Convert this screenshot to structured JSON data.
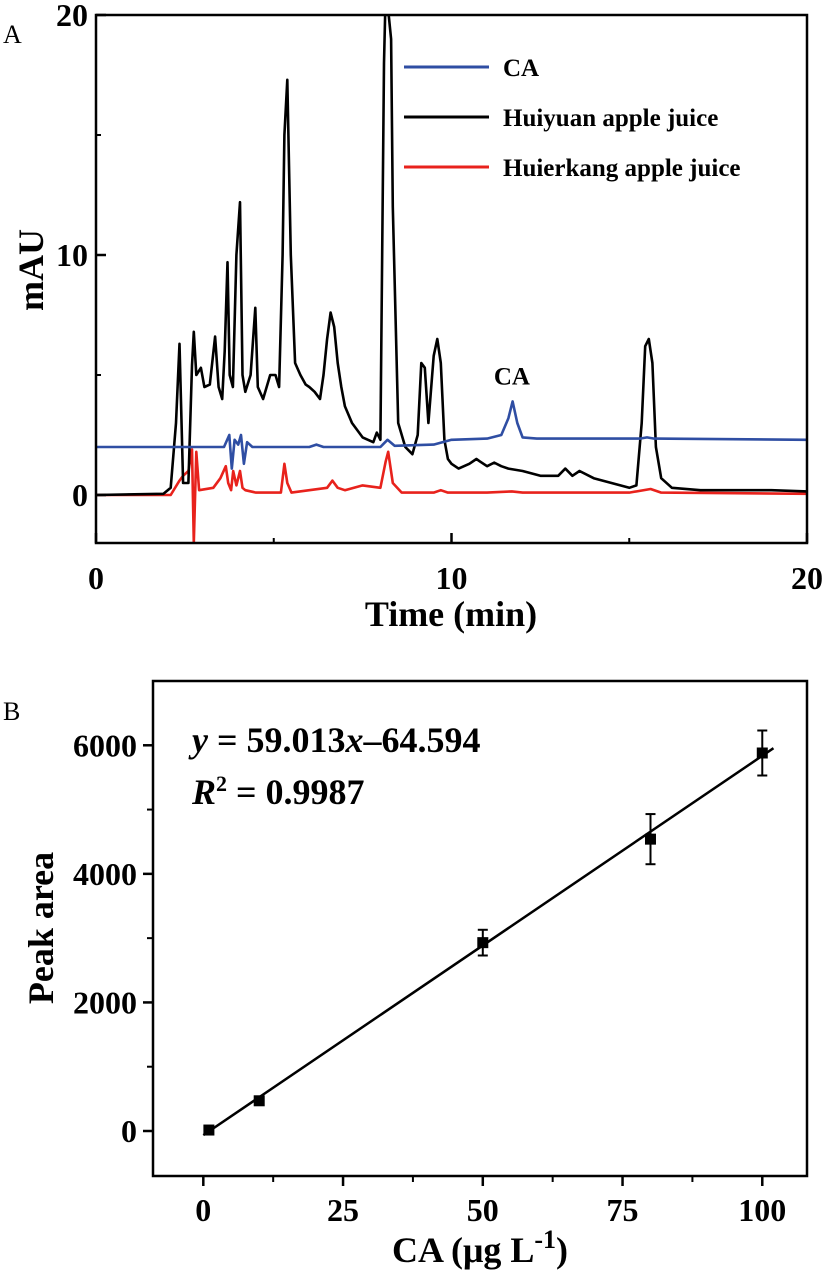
{
  "chart_data": [
    {
      "type": "line",
      "panel_label": "A",
      "xlabel": "Time (min)",
      "ylabel": "mAU",
      "xlim": [
        0,
        20
      ],
      "ylim": [
        -2,
        20
      ],
      "xticks": [
        0,
        10,
        20
      ],
      "yticks": [
        0,
        10,
        20
      ],
      "xticklabels": [
        "0",
        "10",
        "20"
      ],
      "yticklabels": [
        "0",
        "10",
        "20"
      ],
      "grid": false,
      "legend_position": "top-right",
      "annotation": "CA",
      "annotation_at": [
        11.7,
        4.6
      ],
      "series": [
        {
          "name": "CA",
          "color": "#2f4ea3",
          "x": [
            0,
            3.6,
            3.75,
            3.82,
            3.9,
            4.0,
            4.08,
            4.16,
            4.25,
            4.4,
            6.0,
            6.2,
            6.4,
            8.0,
            8.2,
            8.4,
            9.5,
            10.0,
            11.0,
            11.4,
            11.6,
            11.72,
            11.85,
            12.0,
            12.4,
            15.3,
            15.5,
            15.7,
            20
          ],
          "y": [
            2.0,
            2.0,
            2.5,
            1.1,
            2.3,
            2.1,
            2.5,
            1.3,
            2.2,
            2.0,
            2.0,
            2.1,
            2.0,
            2.0,
            2.3,
            2.05,
            2.1,
            2.3,
            2.35,
            2.5,
            3.2,
            3.9,
            3.0,
            2.4,
            2.35,
            2.35,
            2.4,
            2.35,
            2.3
          ]
        },
        {
          "name": "Huiyuan apple juice",
          "color": "#000000",
          "x": [
            0,
            1.9,
            2.1,
            2.25,
            2.35,
            2.45,
            2.6,
            2.7,
            2.75,
            2.82,
            2.95,
            3.05,
            3.2,
            3.35,
            3.45,
            3.55,
            3.62,
            3.7,
            3.76,
            3.85,
            3.95,
            4.05,
            4.12,
            4.2,
            4.35,
            4.48,
            4.55,
            4.7,
            4.9,
            5.05,
            5.15,
            5.25,
            5.3,
            5.38,
            5.48,
            5.6,
            5.75,
            5.9,
            6.0,
            6.15,
            6.3,
            6.4,
            6.5,
            6.6,
            6.7,
            6.8,
            6.9,
            7.0,
            7.2,
            7.5,
            7.8,
            7.9,
            8.0,
            8.1,
            8.15,
            8.2,
            8.3,
            8.35,
            8.5,
            8.7,
            8.9,
            9.05,
            9.15,
            9.25,
            9.35,
            9.5,
            9.6,
            9.7,
            9.8,
            9.9,
            10.0,
            10.2,
            10.5,
            10.7,
            10.8,
            11.0,
            11.2,
            11.4,
            11.6,
            12.0,
            12.5,
            13.0,
            13.2,
            13.4,
            13.6,
            14.0,
            14.5,
            15.0,
            15.2,
            15.35,
            15.45,
            15.55,
            15.65,
            15.75,
            15.9,
            16.2,
            17.0,
            18.0,
            19.0,
            20.0
          ],
          "y": [
            0.0,
            0.05,
            0.3,
            3.0,
            6.3,
            0.5,
            0.5,
            5.4,
            6.8,
            5.0,
            5.3,
            4.5,
            4.6,
            6.6,
            4.5,
            4.0,
            6.0,
            9.7,
            5.0,
            4.5,
            10.0,
            12.2,
            5.0,
            4.3,
            5.0,
            7.8,
            4.5,
            4.0,
            5.0,
            5.0,
            4.5,
            10.0,
            15.0,
            17.3,
            10.0,
            5.5,
            5.0,
            4.6,
            4.5,
            4.3,
            4.0,
            5.0,
            6.5,
            7.6,
            7.0,
            5.5,
            4.5,
            3.7,
            3.0,
            2.4,
            2.2,
            2.6,
            2.3,
            18.0,
            21.0,
            20.5,
            19.0,
            12.0,
            3.0,
            2.0,
            1.7,
            2.5,
            5.5,
            5.3,
            3.0,
            5.8,
            6.5,
            5.5,
            2.3,
            1.5,
            1.3,
            1.1,
            1.3,
            1.5,
            1.4,
            1.2,
            1.35,
            1.2,
            1.1,
            1.0,
            0.8,
            0.8,
            1.1,
            0.8,
            1.0,
            0.7,
            0.5,
            0.3,
            0.4,
            3.0,
            6.2,
            6.5,
            5.5,
            2.0,
            0.7,
            0.3,
            0.2,
            0.2,
            0.2,
            0.15
          ]
        },
        {
          "name": "Huierkang apple juice",
          "color": "#e8221c",
          "x": [
            0,
            2.1,
            2.35,
            2.45,
            2.6,
            2.7,
            2.75,
            2.82,
            2.9,
            3.3,
            3.5,
            3.65,
            3.72,
            3.8,
            3.86,
            3.95,
            4.05,
            4.12,
            4.2,
            4.5,
            5.2,
            5.3,
            5.38,
            5.5,
            6.5,
            6.65,
            6.8,
            7.0,
            7.5,
            8.0,
            8.15,
            8.22,
            8.35,
            8.6,
            9.5,
            9.7,
            9.9,
            11.0,
            11.7,
            12.0,
            15.0,
            15.6,
            15.9,
            20.0
          ],
          "y": [
            0.0,
            0.0,
            0.6,
            0.8,
            1.0,
            1.9,
            -2.0,
            1.8,
            0.2,
            0.3,
            0.7,
            1.2,
            0.5,
            0.2,
            1.0,
            0.4,
            1.0,
            0.3,
            0.2,
            0.1,
            0.1,
            1.3,
            0.5,
            0.1,
            0.3,
            0.6,
            0.3,
            0.2,
            0.4,
            0.3,
            1.4,
            1.8,
            0.5,
            0.1,
            0.1,
            0.2,
            0.1,
            0.1,
            0.15,
            0.1,
            0.1,
            0.25,
            0.1,
            0.05
          ]
        }
      ]
    },
    {
      "type": "scatter",
      "panel_label": "B",
      "xlabel": "CA (μg L",
      "xlabel_sup": "-1",
      "xlabel_close": ")",
      "ylabel": "Peak area",
      "xlim": [
        -9,
        108
      ],
      "ylim": [
        -700,
        7000
      ],
      "xticks": [
        0,
        25,
        50,
        75,
        100
      ],
      "yticks": [
        0,
        2000,
        4000,
        6000
      ],
      "xticklabels": [
        "0",
        "25",
        "50",
        "75",
        "100"
      ],
      "yticklabels": [
        "0",
        "2000",
        "4000",
        "6000"
      ],
      "grid": false,
      "equation": {
        "var_y": "y",
        "eq_part": " = 59.013",
        "var_x": "x",
        "const_part": "–64.594",
        "r_label": "R",
        "r_sup": "2",
        "r_value": " = 0.9987"
      },
      "fit": {
        "slope": 59.013,
        "intercept": -64.594,
        "x_range": [
          0,
          102
        ]
      },
      "points": [
        {
          "x": 1,
          "y": 15,
          "err": 30
        },
        {
          "x": 10,
          "y": 470,
          "err": 60
        },
        {
          "x": 50,
          "y": 2930,
          "err": 200
        },
        {
          "x": 80,
          "y": 4540,
          "err": 390
        },
        {
          "x": 100,
          "y": 5880,
          "err": 350
        }
      ]
    }
  ]
}
